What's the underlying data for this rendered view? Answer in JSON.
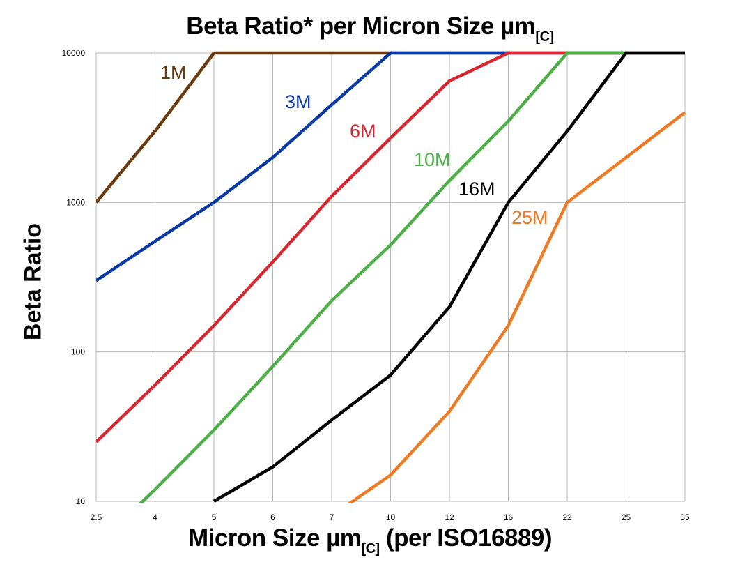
{
  "chart_data": {
    "type": "line",
    "title": "Beta Ratio* per Micron Size µm",
    "title_sub": "[C]",
    "xlabel": "Micron Size µm",
    "xlabel_sub": "[C]",
    "xlabel_suffix": " (per ISO16889)",
    "ylabel": "Beta Ratio",
    "yscale": "log",
    "ylim": [
      10,
      10000
    ],
    "yticks": [
      "10",
      "100",
      "1000",
      "10000"
    ],
    "grid": true,
    "categories": [
      "2.5",
      "4",
      "5",
      "6",
      "7",
      "10",
      "12",
      "16",
      "22",
      "25",
      "35"
    ],
    "series": [
      {
        "name": "1M",
        "color": "#6b3a10",
        "values": [
          1000,
          3000,
          10000,
          10000,
          10000,
          10000,
          10000,
          10000,
          10000,
          10000,
          10000
        ]
      },
      {
        "name": "3M",
        "color": "#0b3aa6",
        "values": [
          300,
          550,
          1000,
          2000,
          4500,
          10000,
          10000,
          10000,
          10000,
          10000,
          10000
        ]
      },
      {
        "name": "6M",
        "color": "#d9262e",
        "values": [
          25,
          60,
          150,
          400,
          1100,
          2700,
          6500,
          10000,
          10000,
          10000,
          10000
        ]
      },
      {
        "name": "10M",
        "color": "#4caf48",
        "values": [
          5,
          12,
          30,
          80,
          220,
          520,
          1400,
          3500,
          10000,
          10000,
          10000
        ]
      },
      {
        "name": "16M",
        "color": "#000000",
        "values": [
          null,
          null,
          10,
          17,
          35,
          70,
          200,
          1000,
          3000,
          10000,
          10000
        ]
      },
      {
        "name": "25M",
        "color": "#f07a22",
        "values": [
          null,
          null,
          null,
          null,
          8,
          15,
          40,
          150,
          1000,
          2000,
          4000
        ]
      }
    ]
  }
}
